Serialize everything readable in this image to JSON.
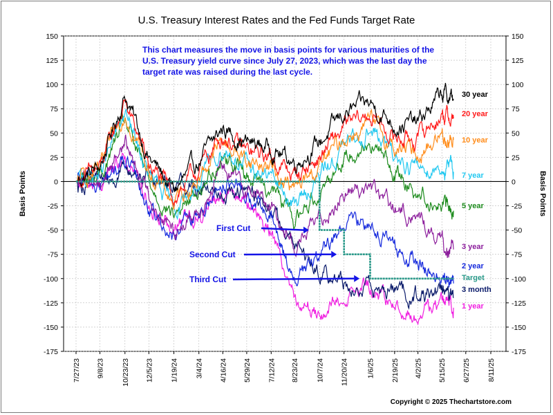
{
  "chart_data": {
    "type": "line",
    "title": "U.S. Treasury Interest Rates and the Fed Funds Target Rate",
    "ylabel_left": "Basis Points",
    "ylabel_right": "Basis Points",
    "ylim": [
      -175,
      150
    ],
    "y_ticks": [
      150,
      125,
      100,
      75,
      50,
      25,
      0,
      -25,
      -50,
      -75,
      -100,
      -125,
      -150,
      -175
    ],
    "x_tick_labels": [
      "7/27/23",
      "9/8/23",
      "10/23/23",
      "12/5/23",
      "1/19/24",
      "3/4/24",
      "4/16/24",
      "5/29/24",
      "7/12/24",
      "8/23/24",
      "10/7/24",
      "11/20/24",
      "1/6/25",
      "2/19/25",
      "4/2/25",
      "5/15/25",
      "6/27/25",
      "8/11/25"
    ],
    "x": [
      "7/27/23",
      "9/8/23",
      "10/23/23",
      "12/5/23",
      "1/19/24",
      "3/4/24",
      "4/16/24",
      "5/29/24",
      "7/12/24",
      "8/23/24",
      "10/7/24",
      "11/20/24",
      "1/6/25",
      "2/19/25",
      "4/2/25",
      "5/15/25"
    ],
    "grid": true,
    "annotation": "This chart measures the move in basis points for various maturities of the U.S. Treasury yield curve since July 27, 2023, which was the last day the target rate was raised during the last cycle.",
    "annotation_lines": [
      "This chart measures the move in basis points for various maturities of the",
      "U.S. Treasury yield curve since July 27, 2023, which was the last day the",
      "target rate was raised during the last cycle."
    ],
    "cuts": [
      {
        "label": "First Cut",
        "date": "9/18/24",
        "target_after": -50
      },
      {
        "label": "Second Cut",
        "date": "11/7/24",
        "target_after": -75
      },
      {
        "label": "Third Cut",
        "date": "12/18/24",
        "target_after": -100
      }
    ],
    "series": [
      {
        "name": "30 year",
        "color": "#000000",
        "values": [
          0,
          15,
          90,
          25,
          -10,
          20,
          55,
          40,
          35,
          20,
          40,
          70,
          80,
          60,
          60,
          90
        ]
      },
      {
        "name": "20 year",
        "color": "#ff1a1a",
        "values": [
          0,
          12,
          82,
          18,
          -15,
          12,
          48,
          30,
          25,
          5,
          25,
          55,
          68,
          45,
          45,
          70
        ]
      },
      {
        "name": "10 year",
        "color": "#ff8c1a",
        "values": [
          0,
          10,
          75,
          12,
          -22,
          5,
          42,
          22,
          15,
          -10,
          15,
          45,
          60,
          35,
          30,
          48
        ]
      },
      {
        "name": "7 year",
        "color": "#22c8f0",
        "values": [
          0,
          8,
          70,
          5,
          -28,
          -2,
          35,
          15,
          5,
          -25,
          5,
          35,
          55,
          25,
          15,
          15
        ]
      },
      {
        "name": "5 year",
        "color": "#1e8c1e",
        "values": [
          0,
          5,
          62,
          -2,
          -35,
          -10,
          28,
          8,
          -5,
          -40,
          -8,
          25,
          42,
          10,
          -10,
          -25
        ]
      },
      {
        "name": "3 year",
        "color": "#8c1e9c",
        "values": [
          0,
          0,
          42,
          -15,
          -50,
          -25,
          12,
          -5,
          -25,
          -65,
          -40,
          -10,
          -5,
          -30,
          -35,
          -65
        ]
      },
      {
        "name": "2 year",
        "color": "#1428dc",
        "values": [
          0,
          -5,
          22,
          -25,
          -58,
          -35,
          2,
          -15,
          -40,
          -100,
          -80,
          -45,
          -40,
          -70,
          -85,
          -100
        ]
      },
      {
        "name": "Target",
        "color": "#2a9a8a",
        "values": [
          0,
          0,
          0,
          0,
          0,
          0,
          0,
          0,
          0,
          0,
          -50,
          -75,
          -100,
          -100,
          -100,
          -100
        ]
      },
      {
        "name": "3 month",
        "color": "#0a1a6a",
        "values": [
          0,
          5,
          10,
          8,
          0,
          -5,
          -5,
          -10,
          -25,
          -70,
          -90,
          -105,
          -112,
          -112,
          -118,
          -115
        ]
      },
      {
        "name": "1 year",
        "color": "#f01ee0",
        "values": [
          0,
          0,
          25,
          -20,
          -45,
          -30,
          -10,
          -20,
          -50,
          -115,
          -140,
          -115,
          -110,
          -130,
          -140,
          -125
        ]
      }
    ]
  },
  "footer": {
    "copyright": "Copyright © 2025 Thechartstore.com"
  }
}
